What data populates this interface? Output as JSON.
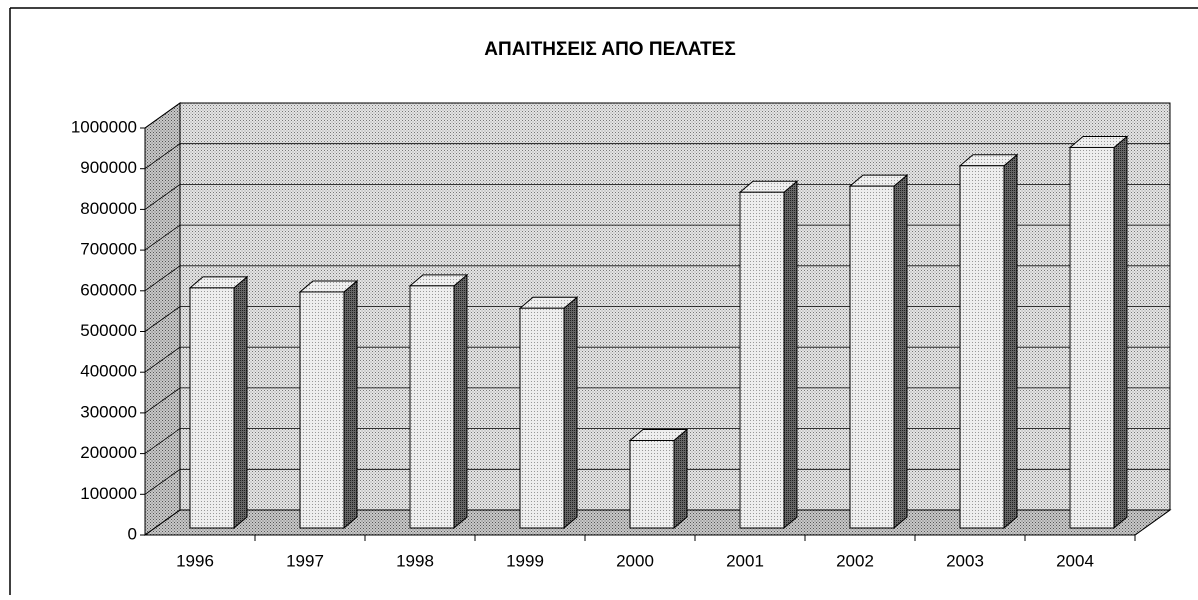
{
  "chart_data": {
    "type": "bar3d",
    "title": "ΑΠΑΙΤΗΣΕΙΣ ΑΠΟ ΠΕΛΑΤΕΣ",
    "categories": [
      "1996",
      "1997",
      "1998",
      "1999",
      "2000",
      "2001",
      "2002",
      "2003",
      "2004"
    ],
    "values": [
      590000,
      580000,
      595000,
      540000,
      215000,
      825000,
      840000,
      890000,
      935000
    ],
    "color": "#d8d8d8",
    "ylim": [
      0,
      1000000
    ],
    "yticks": [
      0,
      100000,
      200000,
      300000,
      400000,
      500000,
      600000,
      700000,
      800000,
      900000,
      1000000
    ],
    "grid": true
  }
}
